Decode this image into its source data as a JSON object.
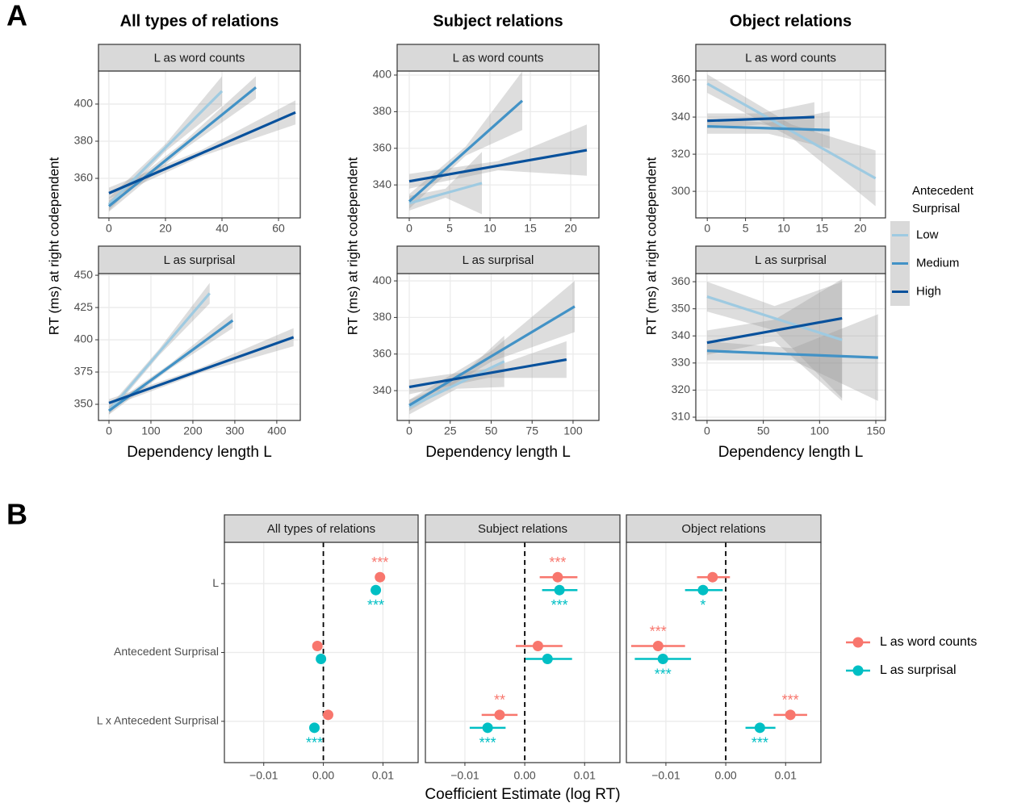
{
  "panel_labels": [
    "A",
    "B"
  ],
  "chart_data": [
    {
      "type": "line",
      "title": "All types of relations",
      "strip": "L as word counts",
      "ylabel": "RT (ms) at right codependent",
      "legend_title": "Antecedent Surprisal",
      "legend": "right",
      "xlim": [
        -3.7,
        67.7
      ],
      "ylim": [
        338.7,
        417.8
      ],
      "xticks": [
        0,
        20,
        40,
        60
      ],
      "yticks": [
        360,
        380,
        400
      ],
      "grid": true,
      "series": [
        {
          "name": "Low",
          "color": "#9ecae1",
          "x": [
            0,
            20,
            40
          ],
          "values": [
            346,
            376.5,
            407
          ],
          "lower": [
            342.5,
            374.5,
            399
          ],
          "upper": [
            349.5,
            378.5,
            415
          ]
        },
        {
          "name": "Medium",
          "color": "#4292c6",
          "x": [
            0,
            26,
            52
          ],
          "values": [
            345,
            377,
            409
          ],
          "lower": [
            342,
            375,
            403
          ],
          "upper": [
            348,
            379,
            415
          ]
        },
        {
          "name": "High",
          "color": "#08519c",
          "x": [
            0,
            33,
            66
          ],
          "values": [
            352,
            373.7,
            395.5
          ],
          "lower": [
            349,
            372,
            389
          ],
          "upper": [
            355,
            375.5,
            402
          ]
        }
      ]
    },
    {
      "type": "line",
      "strip": "L as surprisal",
      "xlabel": "Dependency length L",
      "xlim": [
        -25,
        456
      ],
      "ylim": [
        337.5,
        451.3
      ],
      "xticks": [
        0,
        100,
        200,
        300,
        400
      ],
      "yticks": [
        350,
        375,
        400,
        425,
        450
      ],
      "grid": true,
      "series": [
        {
          "name": "Low",
          "color": "#9ecae1",
          "x": [
            0,
            120,
            240
          ],
          "values": [
            345,
            390.5,
            436
          ],
          "lower": [
            342,
            388,
            428
          ],
          "upper": [
            348,
            393,
            444
          ]
        },
        {
          "name": "Medium",
          "color": "#4292c6",
          "x": [
            0,
            148,
            295
          ],
          "values": [
            345,
            380,
            415
          ],
          "lower": [
            342,
            378,
            409
          ],
          "upper": [
            348,
            382,
            421
          ]
        },
        {
          "name": "High",
          "color": "#08519c",
          "x": [
            0,
            220,
            440
          ],
          "values": [
            351,
            376.5,
            402
          ],
          "lower": [
            348,
            374.5,
            395
          ],
          "upper": [
            354,
            378.5,
            409
          ]
        }
      ]
    },
    {
      "type": "line",
      "title": "Subject relations",
      "strip": "L as word counts",
      "ylabel": "RT (ms) at right codependent",
      "xlim": [
        -1.5,
        23.5
      ],
      "ylim": [
        322,
        402.2
      ],
      "xticks": [
        0,
        5,
        10,
        15,
        20
      ],
      "yticks": [
        340,
        360,
        380,
        400
      ],
      "grid": true,
      "series": [
        {
          "name": "Low",
          "color": "#9ecae1",
          "x": [
            0,
            4.5,
            9
          ],
          "values": [
            330,
            335.5,
            341
          ],
          "lower": [
            326,
            333,
            324
          ],
          "upper": [
            334,
            338,
            358
          ]
        },
        {
          "name": "Medium",
          "color": "#4292c6",
          "x": [
            0,
            7,
            14
          ],
          "values": [
            331,
            358.5,
            386
          ],
          "lower": [
            327,
            356,
            370
          ],
          "upper": [
            335,
            361,
            402
          ]
        },
        {
          "name": "High",
          "color": "#08519c",
          "x": [
            0,
            11,
            22
          ],
          "values": [
            342,
            350.5,
            359
          ],
          "lower": [
            338,
            348,
            345
          ],
          "upper": [
            346,
            353,
            373
          ]
        }
      ]
    },
    {
      "type": "line",
      "strip": "L as surprisal",
      "xlabel": "Dependency length L",
      "xlim": [
        -7.4,
        115.8
      ],
      "ylim": [
        323.7,
        404
      ],
      "xticks": [
        0,
        25,
        50,
        75,
        100
      ],
      "yticks": [
        340,
        360,
        380,
        400
      ],
      "grid": true,
      "series": [
        {
          "name": "Low",
          "color": "#9ecae1",
          "x": [
            0,
            29,
            58
          ],
          "values": [
            331,
            343.5,
            356
          ],
          "lower": [
            327,
            341,
            342
          ],
          "upper": [
            335,
            346,
            370
          ]
        },
        {
          "name": "Medium",
          "color": "#4292c6",
          "x": [
            0,
            50.5,
            101
          ],
          "values": [
            332,
            359,
            386
          ],
          "lower": [
            329,
            356,
            372
          ],
          "upper": [
            335,
            362,
            400
          ]
        },
        {
          "name": "High",
          "color": "#08519c",
          "x": [
            0,
            48,
            96
          ],
          "values": [
            342,
            349.5,
            357
          ],
          "lower": [
            338,
            347,
            347
          ],
          "upper": [
            346,
            352,
            367
          ]
        }
      ]
    },
    {
      "type": "line",
      "title": "Object relations",
      "strip": "L as word counts",
      "ylabel": "RT (ms) at right codependent",
      "xlim": [
        -1.5,
        23.3
      ],
      "ylim": [
        285.7,
        364.8
      ],
      "xticks": [
        0,
        5,
        10,
        15,
        20
      ],
      "yticks": [
        300,
        320,
        340,
        360
      ],
      "grid": true,
      "series": [
        {
          "name": "Low",
          "color": "#9ecae1",
          "x": [
            0,
            11,
            22
          ],
          "values": [
            358,
            332.5,
            307
          ],
          "lower": [
            353,
            329,
            292
          ],
          "upper": [
            363,
            336,
            322
          ]
        },
        {
          "name": "Medium",
          "color": "#4292c6",
          "x": [
            0,
            8,
            16
          ],
          "values": [
            335,
            334,
            333
          ],
          "lower": [
            331,
            331,
            323
          ],
          "upper": [
            339,
            337,
            343
          ]
        },
        {
          "name": "High",
          "color": "#08519c",
          "x": [
            0,
            7,
            14
          ],
          "values": [
            338,
            339,
            340
          ],
          "lower": [
            334,
            336,
            332
          ],
          "upper": [
            342,
            342,
            348
          ]
        }
      ]
    },
    {
      "type": "line",
      "strip": "L as surprisal",
      "xlabel": "Dependency length L",
      "xlim": [
        -10,
        158.6
      ],
      "ylim": [
        308.8,
        363
      ],
      "xticks": [
        0,
        50,
        100,
        150
      ],
      "yticks": [
        310,
        320,
        330,
        340,
        350,
        360
      ],
      "grid": true,
      "series": [
        {
          "name": "Low",
          "color": "#9ecae1",
          "x": [
            0,
            60,
            120
          ],
          "values": [
            354.5,
            346.5,
            338.5
          ],
          "lower": [
            349,
            342,
            317
          ],
          "upper": [
            360,
            351,
            360
          ]
        },
        {
          "name": "Medium",
          "color": "#4292c6",
          "x": [
            0,
            76,
            152
          ],
          "values": [
            334.5,
            333.2,
            332
          ],
          "lower": [
            331,
            331,
            316
          ],
          "upper": [
            338,
            335.5,
            348
          ]
        },
        {
          "name": "High",
          "color": "#08519c",
          "x": [
            0,
            60,
            120
          ],
          "values": [
            337.5,
            342,
            346.5
          ],
          "lower": [
            333,
            338,
            316
          ],
          "upper": [
            342,
            346,
            361
          ]
        }
      ]
    },
    {
      "type": "pointrange",
      "strip": "All types of relations",
      "legend": "right",
      "categories": [
        "L",
        "Antecedent Surprisal",
        "L x Antecedent Surprisal"
      ],
      "xlim": [
        -0.0166,
        0.0159
      ],
      "xticks": [
        {
          "value": -0.01,
          "label": "−0.01"
        },
        {
          "value": 0,
          "label": "0.00"
        },
        {
          "value": 0.01,
          "label": "0.01"
        }
      ],
      "vline": 0,
      "grid": true,
      "series": [
        {
          "name": "L as word counts",
          "color": "#f8766d",
          "values": [
            0.0095,
            -0.001,
            0.0008
          ],
          "lower": [
            0.0088,
            -0.0015,
            0.0004
          ],
          "upper": [
            0.0102,
            -0.0005,
            0.0012
          ],
          "labels": [
            "***",
            null,
            null
          ]
        },
        {
          "name": "L as surprisal",
          "color": "#00bfc4",
          "values": [
            0.0088,
            -0.0004,
            -0.0015
          ],
          "lower": [
            0.0082,
            -0.001,
            -0.0019
          ],
          "upper": [
            0.0094,
            0.0003,
            -0.0011
          ],
          "labels": [
            "***",
            null,
            "***"
          ]
        }
      ]
    },
    {
      "type": "pointrange",
      "strip": "Subject relations",
      "xlabel": "Coefficient Estimate (log RT)",
      "xlim": [
        -0.0166,
        0.0159
      ],
      "xticks": [
        {
          "value": -0.01,
          "label": "−0.01"
        },
        {
          "value": 0,
          "label": "0.00"
        },
        {
          "value": 0.01,
          "label": "0.01"
        }
      ],
      "vline": 0,
      "grid": true,
      "series": [
        {
          "name": "L as word counts",
          "color": "#f8766d",
          "values": [
            0.0055,
            0.0022,
            -0.0042
          ],
          "lower": [
            0.0025,
            -0.0015,
            -0.0072
          ],
          "upper": [
            0.0088,
            0.0063,
            -0.0012
          ],
          "labels": [
            "***",
            null,
            "**"
          ]
        },
        {
          "name": "L as surprisal",
          "color": "#00bfc4",
          "values": [
            0.0058,
            0.0038,
            -0.0062
          ],
          "lower": [
            0.0029,
            0.0001,
            -0.0092
          ],
          "upper": [
            0.0088,
            0.0079,
            -0.0032
          ],
          "labels": [
            "***",
            null,
            "***"
          ]
        }
      ]
    },
    {
      "type": "pointrange",
      "strip": "Object relations",
      "xlim": [
        -0.0166,
        0.0159
      ],
      "xticks": [
        {
          "value": -0.01,
          "label": "−0.01"
        },
        {
          "value": 0,
          "label": "0.00"
        },
        {
          "value": 0.01,
          "label": "0.01"
        }
      ],
      "vline": 0,
      "grid": true,
      "series": [
        {
          "name": "L as word counts",
          "color": "#f8766d",
          "values": [
            -0.0022,
            -0.0113,
            0.0108
          ],
          "lower": [
            -0.0048,
            -0.0158,
            0.008
          ],
          "upper": [
            0.0007,
            -0.0068,
            0.0136
          ],
          "labels": [
            null,
            "***",
            "***"
          ]
        },
        {
          "name": "L as surprisal",
          "color": "#00bfc4",
          "values": [
            -0.0038,
            -0.0105,
            0.0057
          ],
          "lower": [
            -0.0068,
            -0.0152,
            0.0033
          ],
          "upper": [
            -0.0005,
            -0.0058,
            0.0083
          ],
          "labels": [
            "*",
            "***",
            "***"
          ]
        }
      ]
    }
  ]
}
